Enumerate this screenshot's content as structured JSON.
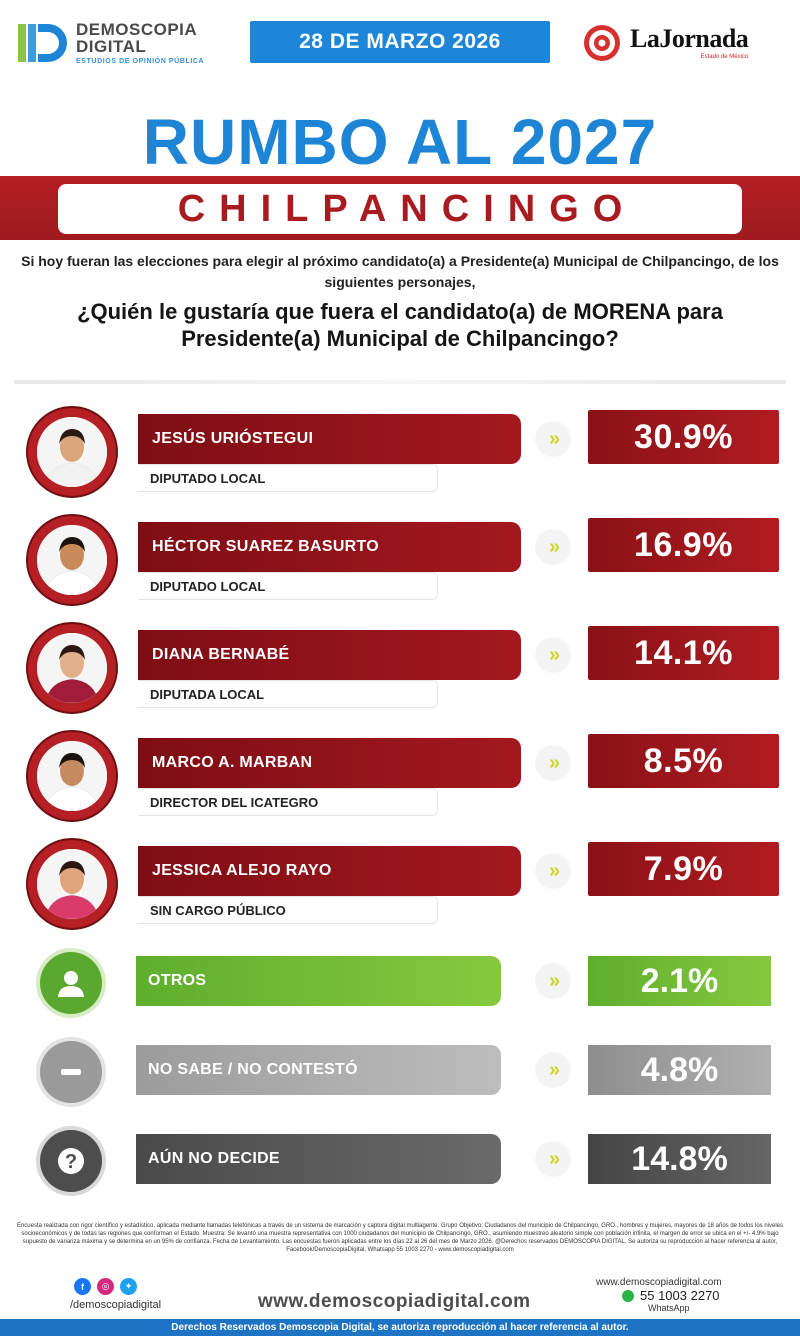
{
  "header": {
    "brand_line1": "DEMOSCOPIA",
    "brand_line2": "DIGITAL",
    "brand_tagline": "ESTUDIOS DE OPINIÓN PÚBLICA",
    "date": "28 DE MARZO 2026",
    "partner_name": "LaJornada",
    "partner_sub": "Estado de México"
  },
  "title": "RUMBO AL 2027",
  "city": "CHILPANCINGO",
  "intro": "Si hoy fueran las elecciones para elegir al próximo candidato(a) a Presidente(a) Municipal de Chilpancingo, de los siguientes personajes,",
  "question": "¿Quién le gustaría que fuera el candidato(a) de MORENA para Presidente(a) Municipal de Chilpancingo?",
  "arrow_glyph": "»",
  "colors": {
    "brand_blue": "#1e84d6",
    "candidate_red": "#a3181f",
    "otros_green": "#7ec23f",
    "no_sabe_gray": "#a8a8a8",
    "no_decide_gray": "#5c5c5c",
    "arrow_lime": "#c9d62a"
  },
  "chart_data": {
    "type": "bar",
    "unit": "%",
    "candidates": [
      {
        "name": "JESÚS URIÓSTEGUI",
        "role": "DIPUTADO LOCAL",
        "value": 30.9,
        "label": "30.9%"
      },
      {
        "name": "HÉCTOR SUAREZ BASURTO",
        "role": "DIPUTADO LOCAL",
        "value": 16.9,
        "label": "16.9%"
      },
      {
        "name": "DIANA BERNABÉ",
        "role": "DIPUTADA LOCAL",
        "value": 14.1,
        "label": "14.1%"
      },
      {
        "name": "MARCO A. MARBAN",
        "role": "DIRECTOR DEL ICATEGRO",
        "value": 8.5,
        "label": "8.5%"
      },
      {
        "name": "JESSICA ALEJO RAYO",
        "role": "SIN CARGO PÚBLICO",
        "value": 7.9,
        "label": "7.9%"
      }
    ],
    "other_options": [
      {
        "name": "OTROS",
        "value": 2.1,
        "label": "2.1%",
        "icon": "person-icon"
      },
      {
        "name": "NO SABE / NO CONTESTÓ",
        "value": 4.8,
        "label": "4.8%",
        "icon": "minus-icon"
      },
      {
        "name": "AÚN NO DECIDE",
        "value": 14.8,
        "label": "14.8%",
        "icon": "question-icon"
      }
    ]
  },
  "footer": {
    "methodology": "Encuesta realizada con rigor científico y estadístico, aplicada mediante llamadas telefónicas a través de un sistema de marcación y captura digital multiagente. Grupo Objetivo: Ciudadanos del municipio de Chilpancingo, GRO., hombres y mujeres, mayores de 18 años de todos los niveles socioeconómicos y de todas las regiones que conforman el Estado. Muestra: Se levantó una muestra representativa con 1000 ciudadanos del municipio de Chilpancingo, GRO., asumiendo muestreo aleatorio simple con población infinita, el margen de error se ubica en el +/- 4.9% bajo supuesto de varianza máxima y se determina en un 95% de confianza. Fecha de Levantamiento. Las encuestas fueron aplicadas entre los días 22 al 26 del mes de Marzo 2026. @Derechos reservados DEMOSCOPIA DIGITAL. Se autoriza su reproducción al hacer referencia al autor, Facebook/DemoscopiaDigital, Whatsapp 55 1003 2270 - www.demoscopiadigital.com",
    "social_handle": "/demoscopiadigital",
    "website": "www.demoscopiadigital.com",
    "contact_web": "www.demoscopiadigital.com",
    "phone": "55 1003 2270",
    "whatsapp_label": "WhatsApp",
    "rights": "Derechos Reservados Demoscopia Digital, se autoriza reproducción al hacer referencia al autor."
  }
}
